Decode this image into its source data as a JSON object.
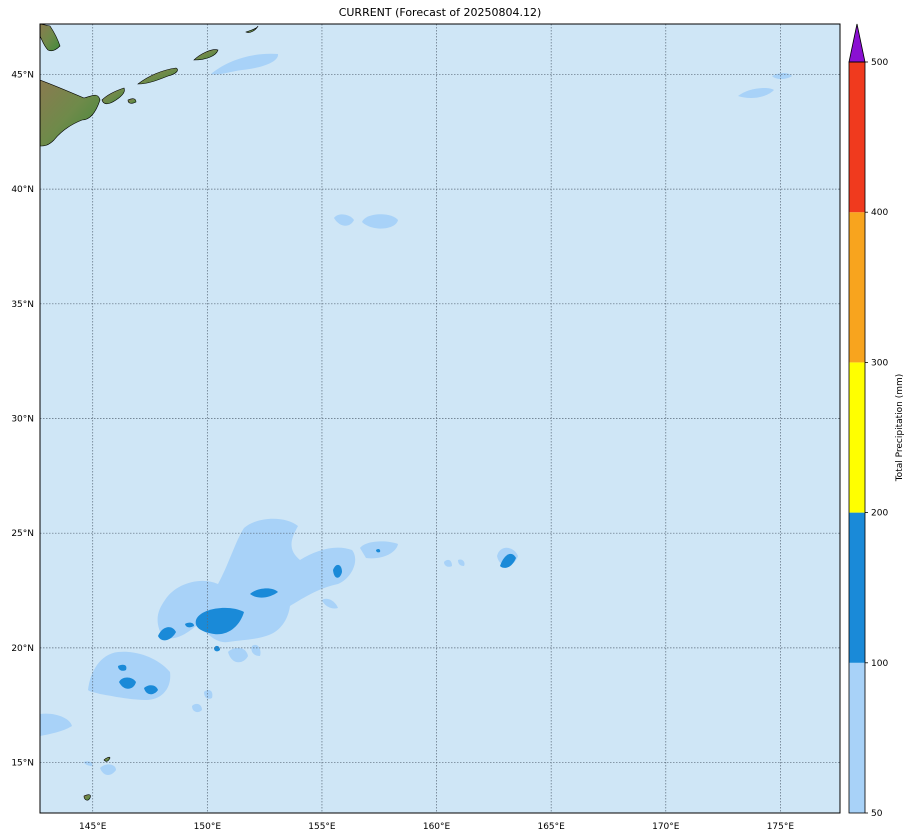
{
  "title": "CURRENT (Forecast of 20250804.12)",
  "map": {
    "lon_range": [
      142.7,
      177.6
    ],
    "lat_range": [
      12.8,
      47.2
    ],
    "ocean_color": "#cfe6f6",
    "grid_color": "#5a6a7a",
    "lon_ticks": [
      {
        "value": 145,
        "label": "145°E"
      },
      {
        "value": 150,
        "label": "150°E"
      },
      {
        "value": 155,
        "label": "155°E"
      },
      {
        "value": 160,
        "label": "160°E"
      },
      {
        "value": 165,
        "label": "165°E"
      },
      {
        "value": 170,
        "label": "170°E"
      },
      {
        "value": 175,
        "label": "175°E"
      }
    ],
    "lat_ticks": [
      {
        "value": 15,
        "label": "15°N"
      },
      {
        "value": 20,
        "label": "20°N"
      },
      {
        "value": 25,
        "label": "25°N"
      },
      {
        "value": 30,
        "label": "30°N"
      },
      {
        "value": 35,
        "label": "35°N"
      },
      {
        "value": 40,
        "label": "40°N"
      },
      {
        "value": 45,
        "label": "45°N"
      }
    ]
  },
  "colorbar": {
    "label": "Total Precipitation (mm)",
    "extend": "max",
    "levels": [
      {
        "value": 50,
        "label": "50"
      },
      {
        "value": 100,
        "label": "100"
      },
      {
        "value": 200,
        "label": "200"
      },
      {
        "value": 300,
        "label": "300"
      },
      {
        "value": 400,
        "label": "400"
      },
      {
        "value": 500,
        "label": "500"
      }
    ],
    "colors": [
      "#a8d2f8",
      "#1a8ad8",
      "#ffff00",
      "#f8a41e",
      "#f03a1e"
    ],
    "over_color": "#8a10d2"
  }
}
